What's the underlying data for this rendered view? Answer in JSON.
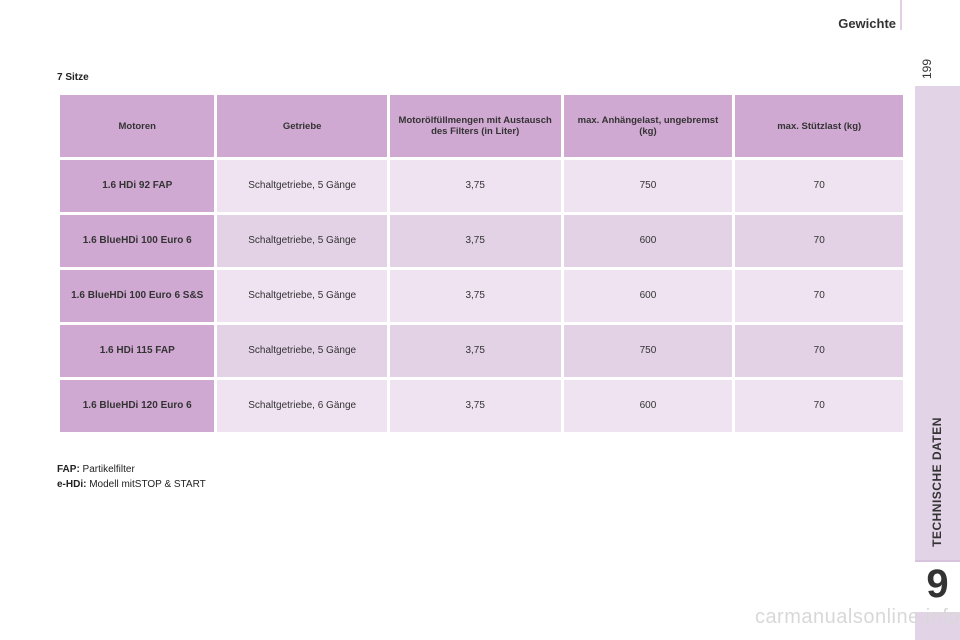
{
  "header": {
    "title": "Gewichte",
    "page_number": "199"
  },
  "side_tab": {
    "label": "TECHNISCHE DATEN",
    "chapter": "9"
  },
  "section_title": "7 Sitze",
  "table": {
    "headers": [
      "Motoren",
      "Getriebe",
      "Motorölfüllmengen mit Austausch des Filters (in Liter)",
      "max. Anhängelast, ungebremst (kg)",
      "max. Stützlast (kg)"
    ],
    "rows": [
      [
        "1.6 HDi 92 FAP",
        "Schaltgetriebe, 5 Gänge",
        "3,75",
        "750",
        "70"
      ],
      [
        "1.6 BlueHDi 100 Euro 6",
        "Schaltgetriebe, 5 Gänge",
        "3,75",
        "600",
        "70"
      ],
      [
        "1.6 BlueHDi 100 Euro 6 S&S",
        "Schaltgetriebe, 5 Gänge",
        "3,75",
        "600",
        "70"
      ],
      [
        "1.6 HDi 115 FAP",
        "Schaltgetriebe, 5 Gänge",
        "3,75",
        "750",
        "70"
      ],
      [
        "1.6 BlueHDi 120 Euro 6",
        "Schaltgetriebe, 6 Gänge",
        "3,75",
        "600",
        "70"
      ]
    ]
  },
  "footnotes": [
    {
      "term": "FAP:",
      "text": " Partikelfilter"
    },
    {
      "term": "e-HDi:",
      "text": " Modell mitSTOP & START"
    }
  ],
  "watermark": "carmanualsonline.info",
  "colors": {
    "header_cell": "#d0a9d3",
    "row_light": "#efe3f1",
    "row_dark": "#e3d1e6",
    "side_tab": "#e3d3e7"
  }
}
